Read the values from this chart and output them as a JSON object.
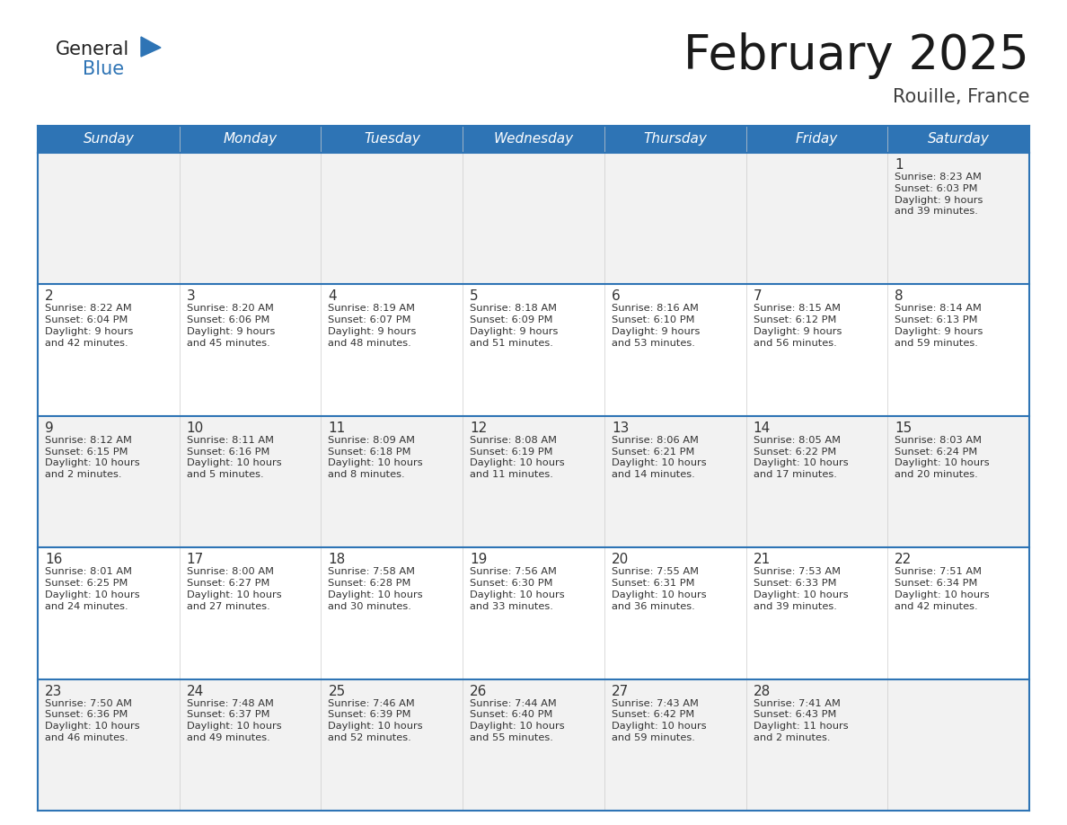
{
  "title": "February 2025",
  "subtitle": "Rouille, France",
  "days_of_week": [
    "Sunday",
    "Monday",
    "Tuesday",
    "Wednesday",
    "Thursday",
    "Friday",
    "Saturday"
  ],
  "header_bg": "#2E74B5",
  "header_text_color": "#FFFFFF",
  "row_bg_odd": "#F2F2F2",
  "row_bg_even": "#FFFFFF",
  "cell_border_color": "#2E74B5",
  "day_number_color": "#333333",
  "cell_text_color": "#333333",
  "title_color": "#1a1a1a",
  "subtitle_color": "#404040",
  "calendar_data": [
    [
      null,
      null,
      null,
      null,
      null,
      null,
      1
    ],
    [
      2,
      3,
      4,
      5,
      6,
      7,
      8
    ],
    [
      9,
      10,
      11,
      12,
      13,
      14,
      15
    ],
    [
      16,
      17,
      18,
      19,
      20,
      21,
      22
    ],
    [
      23,
      24,
      25,
      26,
      27,
      28,
      null
    ]
  ],
  "sunrise_data": {
    "1": "Sunrise: 8:23 AM\nSunset: 6:03 PM\nDaylight: 9 hours\nand 39 minutes.",
    "2": "Sunrise: 8:22 AM\nSunset: 6:04 PM\nDaylight: 9 hours\nand 42 minutes.",
    "3": "Sunrise: 8:20 AM\nSunset: 6:06 PM\nDaylight: 9 hours\nand 45 minutes.",
    "4": "Sunrise: 8:19 AM\nSunset: 6:07 PM\nDaylight: 9 hours\nand 48 minutes.",
    "5": "Sunrise: 8:18 AM\nSunset: 6:09 PM\nDaylight: 9 hours\nand 51 minutes.",
    "6": "Sunrise: 8:16 AM\nSunset: 6:10 PM\nDaylight: 9 hours\nand 53 minutes.",
    "7": "Sunrise: 8:15 AM\nSunset: 6:12 PM\nDaylight: 9 hours\nand 56 minutes.",
    "8": "Sunrise: 8:14 AM\nSunset: 6:13 PM\nDaylight: 9 hours\nand 59 minutes.",
    "9": "Sunrise: 8:12 AM\nSunset: 6:15 PM\nDaylight: 10 hours\nand 2 minutes.",
    "10": "Sunrise: 8:11 AM\nSunset: 6:16 PM\nDaylight: 10 hours\nand 5 minutes.",
    "11": "Sunrise: 8:09 AM\nSunset: 6:18 PM\nDaylight: 10 hours\nand 8 minutes.",
    "12": "Sunrise: 8:08 AM\nSunset: 6:19 PM\nDaylight: 10 hours\nand 11 minutes.",
    "13": "Sunrise: 8:06 AM\nSunset: 6:21 PM\nDaylight: 10 hours\nand 14 minutes.",
    "14": "Sunrise: 8:05 AM\nSunset: 6:22 PM\nDaylight: 10 hours\nand 17 minutes.",
    "15": "Sunrise: 8:03 AM\nSunset: 6:24 PM\nDaylight: 10 hours\nand 20 minutes.",
    "16": "Sunrise: 8:01 AM\nSunset: 6:25 PM\nDaylight: 10 hours\nand 24 minutes.",
    "17": "Sunrise: 8:00 AM\nSunset: 6:27 PM\nDaylight: 10 hours\nand 27 minutes.",
    "18": "Sunrise: 7:58 AM\nSunset: 6:28 PM\nDaylight: 10 hours\nand 30 minutes.",
    "19": "Sunrise: 7:56 AM\nSunset: 6:30 PM\nDaylight: 10 hours\nand 33 minutes.",
    "20": "Sunrise: 7:55 AM\nSunset: 6:31 PM\nDaylight: 10 hours\nand 36 minutes.",
    "21": "Sunrise: 7:53 AM\nSunset: 6:33 PM\nDaylight: 10 hours\nand 39 minutes.",
    "22": "Sunrise: 7:51 AM\nSunset: 6:34 PM\nDaylight: 10 hours\nand 42 minutes.",
    "23": "Sunrise: 7:50 AM\nSunset: 6:36 PM\nDaylight: 10 hours\nand 46 minutes.",
    "24": "Sunrise: 7:48 AM\nSunset: 6:37 PM\nDaylight: 10 hours\nand 49 minutes.",
    "25": "Sunrise: 7:46 AM\nSunset: 6:39 PM\nDaylight: 10 hours\nand 52 minutes.",
    "26": "Sunrise: 7:44 AM\nSunset: 6:40 PM\nDaylight: 10 hours\nand 55 minutes.",
    "27": "Sunrise: 7:43 AM\nSunset: 6:42 PM\nDaylight: 10 hours\nand 59 minutes.",
    "28": "Sunrise: 7:41 AM\nSunset: 6:43 PM\nDaylight: 11 hours\nand 2 minutes."
  }
}
